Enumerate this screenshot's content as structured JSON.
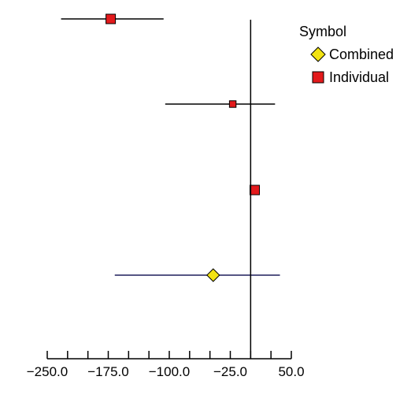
{
  "chart_data": {
    "type": "forest",
    "title": "",
    "xlabel": "",
    "ylabel": "",
    "xlim": [
      -260,
      60
    ],
    "reference_line": 0,
    "x_ticks": [
      -250,
      -225,
      -200,
      -175,
      -150,
      -125,
      -100,
      -75,
      -50,
      -25,
      0,
      25,
      50
    ],
    "x_tick_labels": [
      {
        "value": -250,
        "label": "−250.0"
      },
      {
        "value": -175,
        "label": "−175.0"
      },
      {
        "value": -100,
        "label": "−100.0"
      },
      {
        "value": -25,
        "label": "−25.0"
      },
      {
        "value": 50,
        "label": "50.0"
      }
    ],
    "grid": false,
    "legend": {
      "title": "Symbol",
      "placement": "top-right",
      "entries": [
        {
          "label": "Combined",
          "symbol": "diamond",
          "color": "#f2e313"
        },
        {
          "label": "Individual",
          "symbol": "square",
          "color": "#e31a1c"
        }
      ]
    },
    "rows": [
      {
        "symbol": "square",
        "estimate": -172,
        "lower": -233,
        "upper": -107,
        "marker_size": 1.0,
        "line_color": "#000000"
      },
      {
        "symbol": "square",
        "estimate": -22,
        "lower": -105,
        "upper": 30,
        "marker_size": 0.7,
        "line_color": "#000000"
      },
      {
        "symbol": "square",
        "estimate": 5,
        "lower": 1,
        "upper": 10,
        "marker_size": 1.0,
        "line_color": "#000000"
      },
      {
        "symbol": "diamond",
        "estimate": -46,
        "lower": -167,
        "upper": 36,
        "marker_size": 1.0,
        "line_color": "#1f1f5c"
      }
    ],
    "colors": {
      "individual_fill": "#e31a1c",
      "combined_fill": "#f2e313",
      "axis": "#000000"
    }
  }
}
